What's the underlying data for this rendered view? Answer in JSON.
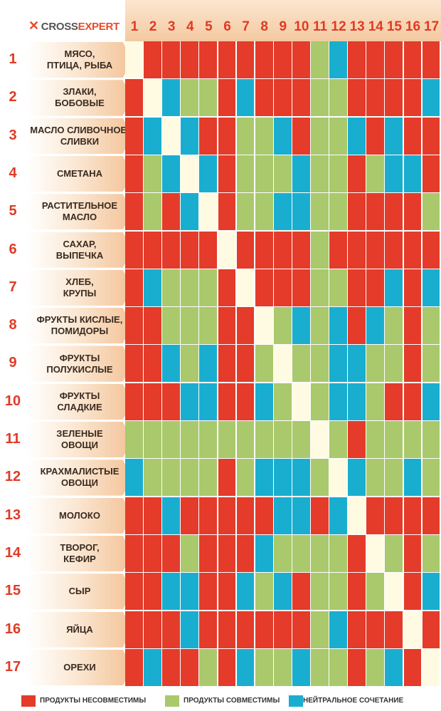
{
  "brand": {
    "mark": "✕",
    "name_a": "CROSS",
    "name_b": "EXPERT"
  },
  "colors": {
    "incompatible": "#e43b2a",
    "compatible": "#a9c96c",
    "neutral": "#19aed0",
    "self": "#fffbe3"
  },
  "chart_data": {
    "type": "heatmap",
    "column_labels": [
      "1",
      "2",
      "3",
      "4",
      "5",
      "6",
      "7",
      "8",
      "9",
      "10",
      "11",
      "12",
      "13",
      "14",
      "15",
      "16",
      "17"
    ],
    "row_numbers": [
      "1",
      "2",
      "3",
      "4",
      "5",
      "6",
      "7",
      "8",
      "9",
      "10",
      "11",
      "12",
      "13",
      "14",
      "15",
      "16",
      "17"
    ],
    "row_labels": [
      [
        "МЯСО,",
        "ПТИЦА, РЫБА"
      ],
      [
        "ЗЛАКИ,",
        "БОБОВЫЕ"
      ],
      [
        "МАСЛО СЛИВОЧНОЕ,",
        "СЛИВКИ"
      ],
      [
        "СМЕТАНА"
      ],
      [
        "РАСТИТЕЛЬНОЕ",
        "МАСЛО"
      ],
      [
        "САХАР,",
        "ВЫПЕЧКА"
      ],
      [
        "ХЛЕБ,",
        "КРУПЫ"
      ],
      [
        "ФРУКТЫ КИСЛЫЕ,",
        "ПОМИДОРЫ"
      ],
      [
        "ФРУКТЫ",
        "ПОЛУКИСЛЫЕ"
      ],
      [
        "ФРУКТЫ",
        "СЛАДКИЕ"
      ],
      [
        "ЗЕЛЕНЫЕ",
        "ОВОЩИ"
      ],
      [
        "КРАХМАЛИСТЫЕ",
        "ОВОЩИ"
      ],
      [
        "МОЛОКО"
      ],
      [
        "ТВОРОГ,",
        "КЕФИР"
      ],
      [
        "СЫР"
      ],
      [
        "ЯЙЦА"
      ],
      [
        "ОРЕХИ"
      ]
    ],
    "legend": {
      "R": "ПРОДУКТЫ НЕСОВМЕСТИМЫ",
      "G": "ПРОДУКТЫ СОВМЕСТИМЫ",
      "B": "НЕЙТРАЛЬНОЕ СОЧЕТАНИЕ"
    },
    "matrix": [
      [
        "-",
        "R",
        "R",
        "R",
        "R",
        "R",
        "R",
        "R",
        "R",
        "R",
        "G",
        "B",
        "R",
        "R",
        "R",
        "R",
        "R"
      ],
      [
        "R",
        "-",
        "B",
        "G",
        "G",
        "R",
        "B",
        "R",
        "R",
        "R",
        "G",
        "G",
        "R",
        "R",
        "R",
        "R",
        "B"
      ],
      [
        "R",
        "B",
        "-",
        "B",
        "R",
        "R",
        "G",
        "G",
        "B",
        "R",
        "G",
        "G",
        "B",
        "R",
        "B",
        "R",
        "R"
      ],
      [
        "R",
        "G",
        "B",
        "-",
        "B",
        "R",
        "G",
        "G",
        "G",
        "B",
        "G",
        "G",
        "R",
        "G",
        "B",
        "B",
        "R"
      ],
      [
        "R",
        "G",
        "R",
        "B",
        "-",
        "R",
        "G",
        "G",
        "B",
        "B",
        "G",
        "G",
        "R",
        "R",
        "R",
        "R",
        "G"
      ],
      [
        "R",
        "R",
        "R",
        "R",
        "R",
        "-",
        "R",
        "R",
        "R",
        "R",
        "G",
        "R",
        "R",
        "R",
        "R",
        "R",
        "R"
      ],
      [
        "R",
        "B",
        "G",
        "G",
        "G",
        "R",
        "-",
        "R",
        "R",
        "R",
        "G",
        "G",
        "R",
        "R",
        "B",
        "R",
        "B"
      ],
      [
        "R",
        "R",
        "G",
        "G",
        "G",
        "R",
        "R",
        "-",
        "G",
        "B",
        "G",
        "B",
        "R",
        "B",
        "G",
        "R",
        "G"
      ],
      [
        "R",
        "R",
        "B",
        "G",
        "B",
        "R",
        "R",
        "G",
        "-",
        "G",
        "G",
        "B",
        "B",
        "G",
        "G",
        "R",
        "G"
      ],
      [
        "R",
        "R",
        "R",
        "B",
        "B",
        "R",
        "R",
        "B",
        "G",
        "-",
        "G",
        "B",
        "B",
        "G",
        "R",
        "R",
        "B"
      ],
      [
        "G",
        "G",
        "G",
        "G",
        "G",
        "G",
        "G",
        "G",
        "G",
        "G",
        "-",
        "G",
        "R",
        "G",
        "G",
        "G",
        "G"
      ],
      [
        "B",
        "G",
        "G",
        "G",
        "G",
        "R",
        "G",
        "B",
        "B",
        "B",
        "G",
        "-",
        "B",
        "G",
        "G",
        "B",
        "G"
      ],
      [
        "R",
        "R",
        "B",
        "R",
        "R",
        "R",
        "R",
        "R",
        "B",
        "B",
        "R",
        "B",
        "-",
        "R",
        "R",
        "R",
        "R"
      ],
      [
        "R",
        "R",
        "R",
        "G",
        "R",
        "R",
        "R",
        "B",
        "G",
        "G",
        "G",
        "G",
        "R",
        "-",
        "G",
        "R",
        "G"
      ],
      [
        "R",
        "R",
        "B",
        "B",
        "R",
        "R",
        "B",
        "G",
        "B",
        "R",
        "G",
        "G",
        "R",
        "G",
        "-",
        "R",
        "B"
      ],
      [
        "R",
        "R",
        "R",
        "B",
        "R",
        "R",
        "R",
        "R",
        "R",
        "R",
        "G",
        "B",
        "R",
        "R",
        "R",
        "-",
        "R"
      ],
      [
        "R",
        "B",
        "R",
        "R",
        "G",
        "R",
        "B",
        "G",
        "G",
        "B",
        "G",
        "G",
        "R",
        "G",
        "B",
        "R",
        "-"
      ]
    ]
  }
}
